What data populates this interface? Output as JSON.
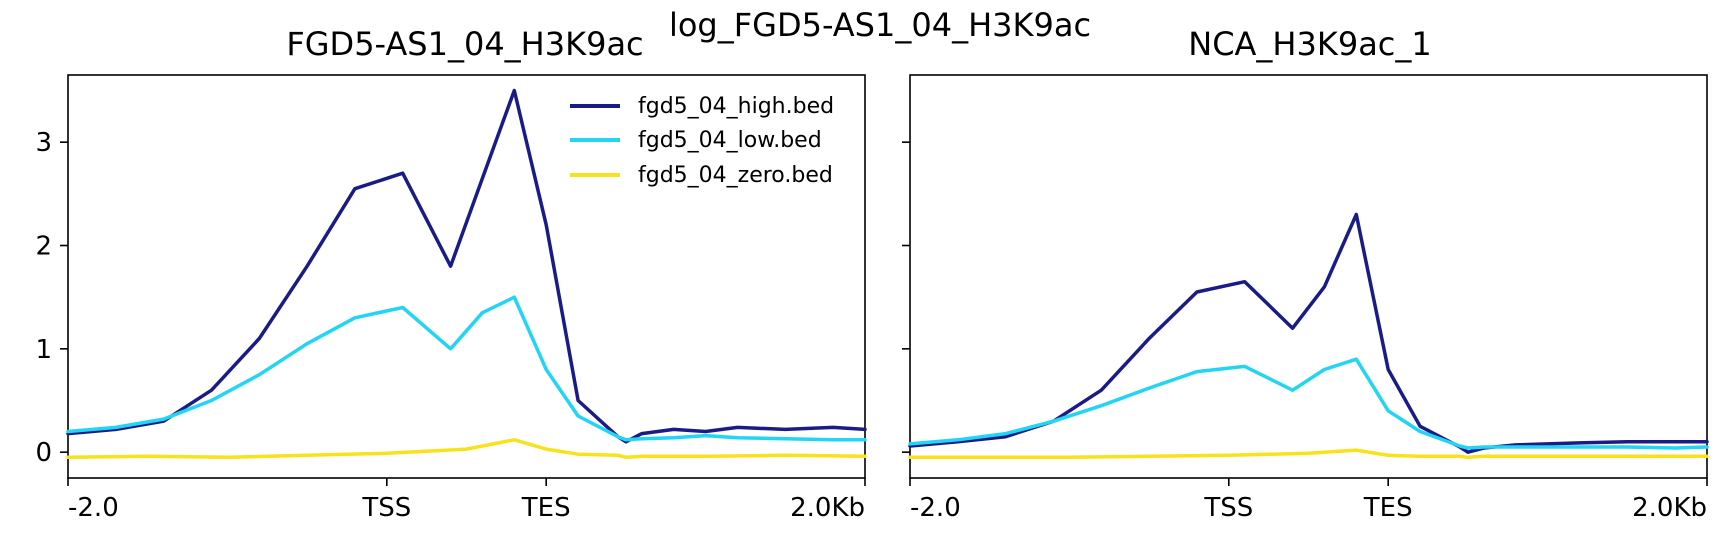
{
  "figure_title": "log_FGD5-AS1_04_H3K9ac",
  "colors": {
    "high": "#1b1b88",
    "low": "#22d5f5",
    "zero": "#f7e21b"
  },
  "legend": {
    "items": [
      {
        "label": "fgd5_04_high.bed",
        "color": "#1b1b88"
      },
      {
        "label": "fgd5_04_low.bed",
        "color": "#22d5f5"
      },
      {
        "label": "fgd5_04_zero.bed",
        "color": "#f7e21b"
      }
    ],
    "placement": "top-right of left panel"
  },
  "chart_data": [
    {
      "type": "line",
      "title": "FGD5-AS1_04_H3K9ac",
      "xlabel": "",
      "ylabel": "",
      "x_ticks": [
        "-2.0",
        "TSS",
        "TES",
        "2.0Kb"
      ],
      "xlim": [
        0,
        5
      ],
      "ylim": [
        -0.25,
        3.65
      ],
      "y_ticks": [
        "0",
        "1",
        "2",
        "3"
      ],
      "y_tick_values": [
        0,
        1,
        2,
        3
      ],
      "grid": false,
      "series": [
        {
          "name": "fgd5_04_high.bed",
          "key": "high",
          "x": [
            0,
            0.3,
            0.6,
            0.9,
            1.2,
            1.5,
            1.8,
            2.1,
            2.4,
            2.6,
            2.8,
            3.0,
            3.2,
            3.45,
            3.5,
            3.6,
            3.8,
            4.0,
            4.2,
            4.5,
            4.8,
            5.0
          ],
          "values": [
            0.18,
            0.22,
            0.3,
            0.6,
            1.1,
            1.8,
            2.55,
            2.7,
            1.8,
            2.65,
            3.5,
            2.2,
            0.5,
            0.15,
            0.1,
            0.18,
            0.22,
            0.2,
            0.24,
            0.22,
            0.24,
            0.22
          ]
        },
        {
          "name": "fgd5_04_low.bed",
          "key": "low",
          "x": [
            0,
            0.3,
            0.6,
            0.9,
            1.2,
            1.5,
            1.8,
            2.1,
            2.4,
            2.6,
            2.8,
            3.0,
            3.2,
            3.45,
            3.5,
            3.6,
            3.8,
            4.0,
            4.2,
            4.5,
            4.8,
            5.0
          ],
          "values": [
            0.2,
            0.24,
            0.32,
            0.5,
            0.75,
            1.05,
            1.3,
            1.4,
            1.0,
            1.35,
            1.5,
            0.8,
            0.35,
            0.15,
            0.12,
            0.13,
            0.14,
            0.16,
            0.14,
            0.13,
            0.12,
            0.12
          ]
        },
        {
          "name": "fgd5_04_zero.bed",
          "key": "zero",
          "x": [
            0,
            0.5,
            1.0,
            1.5,
            2.0,
            2.5,
            2.8,
            3.0,
            3.2,
            3.45,
            3.5,
            3.6,
            4.0,
            4.5,
            5.0
          ],
          "values": [
            -0.05,
            -0.04,
            -0.05,
            -0.03,
            -0.01,
            0.03,
            0.12,
            0.03,
            -0.02,
            -0.03,
            -0.05,
            -0.04,
            -0.04,
            -0.03,
            -0.04
          ]
        }
      ]
    },
    {
      "type": "line",
      "title": "NCA_H3K9ac_1",
      "xlabel": "",
      "ylabel": "",
      "x_ticks": [
        "-2.0",
        "TSS",
        "TES",
        "2.0Kb"
      ],
      "xlim": [
        0,
        5
      ],
      "ylim": [
        -0.25,
        3.65
      ],
      "y_ticks": [
        "0",
        "1",
        "2",
        "3"
      ],
      "y_tick_values": [
        0,
        1,
        2,
        3
      ],
      "grid": false,
      "series": [
        {
          "name": "fgd5_04_high.bed",
          "key": "high",
          "x": [
            0,
            0.3,
            0.6,
            0.9,
            1.2,
            1.5,
            1.8,
            2.1,
            2.4,
            2.6,
            2.8,
            3.0,
            3.2,
            3.45,
            3.5,
            3.6,
            3.8,
            4.0,
            4.2,
            4.5,
            4.8,
            5.0
          ],
          "values": [
            0.06,
            0.1,
            0.15,
            0.3,
            0.6,
            1.1,
            1.55,
            1.65,
            1.2,
            1.6,
            2.3,
            0.8,
            0.25,
            0.05,
            0.0,
            0.04,
            0.07,
            0.08,
            0.09,
            0.1,
            0.1,
            0.1
          ]
        },
        {
          "name": "fgd5_04_low.bed",
          "key": "low",
          "x": [
            0,
            0.3,
            0.6,
            0.9,
            1.2,
            1.5,
            1.8,
            2.1,
            2.4,
            2.6,
            2.8,
            3.0,
            3.2,
            3.45,
            3.5,
            3.6,
            3.8,
            4.0,
            4.2,
            4.5,
            4.8,
            5.0
          ],
          "values": [
            0.08,
            0.12,
            0.18,
            0.3,
            0.45,
            0.62,
            0.78,
            0.83,
            0.6,
            0.8,
            0.9,
            0.4,
            0.2,
            0.06,
            0.04,
            0.05,
            0.05,
            0.05,
            0.05,
            0.05,
            0.04,
            0.05
          ]
        },
        {
          "name": "fgd5_04_zero.bed",
          "key": "zero",
          "x": [
            0,
            0.5,
            1.0,
            1.5,
            2.0,
            2.5,
            2.8,
            3.0,
            3.2,
            3.45,
            3.5,
            3.6,
            4.0,
            4.5,
            5.0
          ],
          "values": [
            -0.05,
            -0.05,
            -0.05,
            -0.04,
            -0.03,
            -0.01,
            0.02,
            -0.03,
            -0.04,
            -0.04,
            -0.05,
            -0.04,
            -0.04,
            -0.04,
            -0.04
          ]
        }
      ]
    }
  ]
}
